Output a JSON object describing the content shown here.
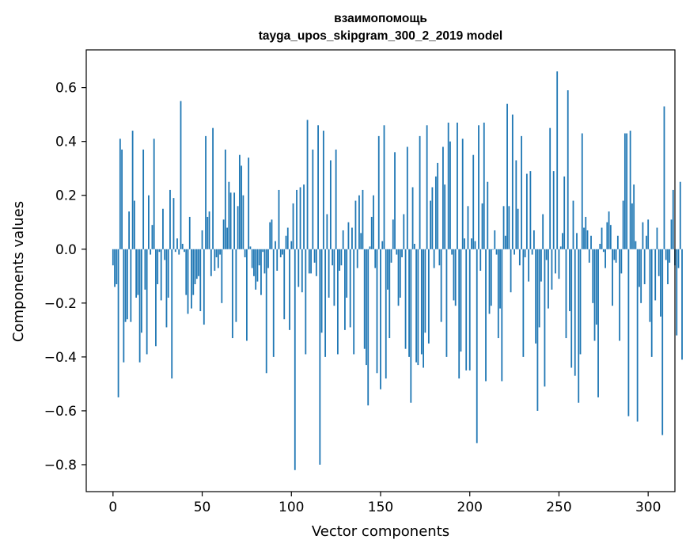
{
  "chart_data": {
    "type": "bar",
    "title_line1": "взаимопомощь",
    "title_line2": "tayga_upos_skipgram_300_2_2019 model",
    "xlabel": "Vector components",
    "ylabel": "Components values",
    "xlim": [
      -15,
      315
    ],
    "ylim": [
      -0.9,
      0.74
    ],
    "x_ticks": [
      0,
      50,
      100,
      150,
      200,
      250,
      300
    ],
    "y_ticks": [
      -0.8,
      -0.6,
      -0.4,
      -0.2,
      0.0,
      0.2,
      0.4,
      0.6
    ],
    "x_tick_labels": [
      "0",
      "50",
      "100",
      "150",
      "200",
      "250",
      "300"
    ],
    "y_tick_labels": [
      "−0.8",
      "−0.6",
      "−0.4",
      "−0.2",
      "0.0",
      "0.2",
      "0.4",
      "0.6"
    ],
    "bar_color": "#1f77b4",
    "grid": false,
    "values": [
      -0.06,
      -0.14,
      -0.13,
      -0.55,
      0.41,
      0.37,
      -0.42,
      -0.27,
      -0.26,
      0.14,
      -0.27,
      0.44,
      0.18,
      -0.18,
      -0.17,
      -0.42,
      -0.31,
      0.37,
      -0.15,
      -0.39,
      0.2,
      -0.02,
      0.09,
      0.41,
      -0.36,
      -0.13,
      -0.01,
      -0.19,
      0.15,
      -0.04,
      -0.29,
      -0.18,
      0.22,
      -0.48,
      0.19,
      -0.01,
      0.04,
      -0.02,
      0.55,
      0.02,
      -0.01,
      -0.17,
      -0.24,
      0.12,
      -0.22,
      -0.17,
      -0.13,
      -0.11,
      -0.1,
      -0.23,
      0.07,
      -0.28,
      0.42,
      0.12,
      0.14,
      -0.1,
      0.45,
      -0.08,
      -0.03,
      -0.07,
      -0.02,
      -0.2,
      0.11,
      0.37,
      0.08,
      0.25,
      0.21,
      -0.33,
      0.21,
      -0.27,
      0.16,
      0.35,
      0.31,
      0.2,
      -0.03,
      -0.34,
      0.34,
      0.01,
      -0.07,
      -0.1,
      -0.15,
      -0.12,
      -0.06,
      -0.17,
      -0.01,
      -0.09,
      -0.46,
      -0.07,
      0.1,
      0.11,
      -0.4,
      0.03,
      -0.08,
      0.22,
      -0.03,
      -0.02,
      -0.26,
      0.05,
      0.08,
      -0.3,
      0.03,
      0.17,
      -0.82,
      0.22,
      -0.14,
      0.23,
      -0.16,
      0.24,
      -0.39,
      0.48,
      -0.09,
      -0.09,
      0.37,
      -0.05,
      -0.1,
      0.46,
      -0.8,
      -0.31,
      0.44,
      -0.4,
      0.13,
      -0.18,
      0.33,
      -0.06,
      -0.21,
      0.37,
      -0.39,
      -0.08,
      -0.06,
      0.07,
      -0.3,
      -0.18,
      0.1,
      -0.29,
      0.08,
      -0.39,
      0.18,
      -0.07,
      0.2,
      0.06,
      0.22,
      -0.37,
      -0.43,
      -0.58,
      0.01,
      0.12,
      0.2,
      -0.07,
      -0.46,
      0.42,
      -0.52,
      0.03,
      0.46,
      -0.48,
      -0.15,
      -0.33,
      -0.05,
      0.11,
      0.36,
      -0.02,
      -0.21,
      -0.18,
      -0.03,
      0.13,
      -0.37,
      0.38,
      -0.4,
      -0.57,
      0.23,
      0.02,
      -0.42,
      -0.43,
      0.42,
      -0.39,
      -0.44,
      -0.31,
      0.46,
      -0.35,
      0.18,
      0.23,
      -0.07,
      0.27,
      0.32,
      -0.06,
      -0.27,
      0.38,
      0.24,
      -0.4,
      0.47,
      0.4,
      -0.02,
      -0.19,
      -0.21,
      0.47,
      -0.48,
      -0.38,
      0.41,
      0.04,
      -0.45,
      0.16,
      -0.45,
      0.04,
      0.35,
      0.03,
      -0.72,
      0.46,
      -0.08,
      0.17,
      0.47,
      -0.49,
      0.25,
      -0.24,
      -0.21,
      0.0,
      0.07,
      -0.02,
      -0.33,
      -0.22,
      -0.49,
      0.16,
      0.05,
      0.54,
      0.16,
      -0.16,
      0.5,
      -0.02,
      0.33,
      0.15,
      -0.06,
      0.42,
      -0.4,
      -0.03,
      0.28,
      -0.12,
      0.29,
      -0.02,
      0.07,
      -0.35,
      -0.6,
      -0.29,
      -0.12,
      0.13,
      -0.51,
      -0.04,
      -0.22,
      0.45,
      -0.15,
      0.29,
      -0.09,
      0.66,
      -0.11,
      0.01,
      0.06,
      0.27,
      -0.33,
      0.59,
      -0.23,
      -0.44,
      0.18,
      -0.47,
      0.06,
      -0.57,
      -0.39,
      0.43,
      0.08,
      0.12,
      0.07,
      -0.05,
      0.05,
      -0.2,
      -0.34,
      -0.28,
      -0.55,
      0.02,
      0.08,
      -0.01,
      -0.07,
      0.1,
      0.14,
      0.09,
      -0.21,
      -0.04,
      -0.05,
      0.05,
      -0.34,
      -0.09,
      0.18,
      0.43,
      0.43,
      -0.62,
      0.44,
      0.17,
      0.24,
      0.03,
      -0.64,
      -0.14,
      -0.2,
      0.1,
      -0.13,
      0.05,
      0.11,
      -0.27,
      -0.4,
      0.0,
      -0.19,
      0.08,
      -0.1,
      -0.25,
      -0.69,
      0.53,
      -0.04,
      -0.13,
      -0.05,
      0.11,
      0.22,
      -0.06,
      -0.32,
      -0.07,
      0.25,
      -0.41
    ]
  }
}
